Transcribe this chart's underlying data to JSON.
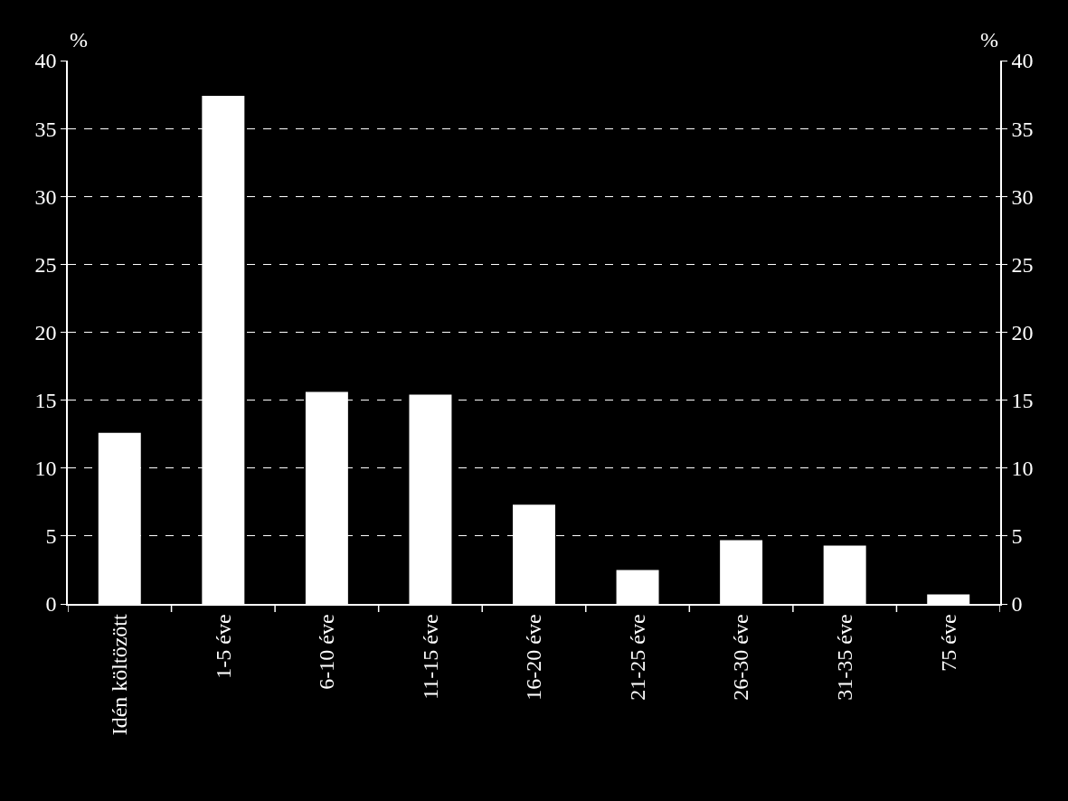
{
  "chart_data": {
    "type": "bar",
    "ylabel": "%",
    "y2label": "%",
    "categories": [
      "Idén költözött",
      "1-5 éve",
      "6-10 éve",
      "11-15 éve",
      "16-20 éve",
      "21-25 éve",
      "26-30 éve",
      "31-35 éve",
      "75 éve"
    ],
    "values": [
      12.6,
      37.4,
      15.6,
      15.4,
      7.3,
      2.5,
      4.7,
      4.3,
      0.7
    ],
    "color": "#ffffff",
    "ylim": [
      0,
      40
    ],
    "yticks": [
      0,
      5,
      10,
      15,
      20,
      25,
      30,
      35,
      40
    ],
    "y2lim": [
      0,
      40
    ],
    "y2ticks": [
      0,
      5,
      10,
      15,
      20,
      25,
      30,
      35,
      40
    ],
    "grid": "y"
  }
}
